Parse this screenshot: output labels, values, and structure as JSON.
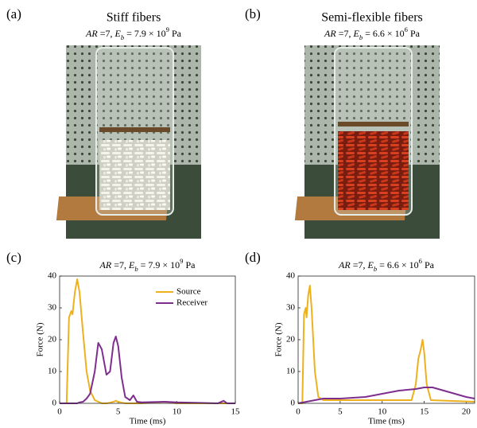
{
  "photos": [
    {
      "label": "(a)",
      "title": "Stiff fibers",
      "subtitle": [
        "AR",
        " =7, ",
        "E",
        "b",
        " = 7.9 × 10",
        "9",
        " Pa"
      ]
    },
    {
      "label": "(b)",
      "title": "Semi-flexible fibers",
      "subtitle": [
        "AR",
        " =7, ",
        "E",
        "b",
        " = 6.6 × 10",
        "6",
        " Pa"
      ]
    }
  ],
  "chart_data": [
    {
      "type": "line",
      "panel_label": "(c)",
      "subtitle": [
        "AR",
        " =7, ",
        "E",
        "b",
        " = 7.9 × 10",
        "9",
        " Pa"
      ],
      "xlabel": "Time (ms)",
      "ylabel": "Force (N)",
      "xlim": [
        0,
        15
      ],
      "xticks": [
        0,
        5,
        10,
        15
      ],
      "ylim": [
        0,
        40
      ],
      "yticks": [
        0,
        10,
        20,
        30,
        40
      ],
      "legend": "upper right",
      "series": [
        {
          "name": "Source",
          "color": "#edb120",
          "x": [
            0,
            0.6,
            0.8,
            1.0,
            1.1,
            1.3,
            1.5,
            1.7,
            2.0,
            2.3,
            2.6,
            3.0,
            3.3,
            3.6,
            4.0,
            4.3,
            4.6,
            4.8,
            5.0,
            5.3,
            5.6,
            6.0,
            6.3,
            6.6,
            7.0,
            9.0,
            10.0,
            13.5,
            14.0,
            14.3,
            15.0
          ],
          "values": [
            0,
            0,
            27,
            29,
            28,
            35,
            39,
            35,
            22,
            10,
            4,
            1,
            0.5,
            0,
            0,
            0.2,
            0.5,
            0.8,
            0.5,
            0.2,
            0,
            0,
            0,
            0,
            0,
            0.5,
            0,
            0,
            0,
            0,
            0
          ]
        },
        {
          "name": "Receiver",
          "color": "#7e2f8e",
          "x": [
            0,
            0.6,
            0.8,
            1.0,
            1.1,
            1.3,
            1.5,
            1.7,
            2.0,
            2.3,
            2.6,
            3.0,
            3.3,
            3.6,
            4.0,
            4.3,
            4.6,
            4.8,
            5.0,
            5.3,
            5.6,
            6.0,
            6.3,
            6.6,
            7.0,
            9.0,
            10.0,
            13.5,
            14.0,
            14.3,
            15.0
          ],
          "values": [
            0,
            0,
            0,
            0,
            0,
            0,
            0,
            0.3,
            0.5,
            1.5,
            3,
            10,
            19,
            17,
            9,
            10,
            19,
            21,
            18,
            8,
            2,
            1,
            2.5,
            0.5,
            0.3,
            0.5,
            0.3,
            0,
            0.8,
            0,
            0
          ]
        }
      ]
    },
    {
      "type": "line",
      "panel_label": "(d)",
      "subtitle": [
        "AR",
        " =7, ",
        "E",
        "b",
        " = 6.6 × 10",
        "6",
        " Pa"
      ],
      "xlabel": "Time (ms)",
      "ylabel": "Force (N)",
      "xlim": [
        0,
        21
      ],
      "xticks": [
        0,
        5,
        10,
        15,
        20
      ],
      "ylim": [
        0,
        40
      ],
      "yticks": [
        0,
        10,
        20,
        30,
        40
      ],
      "series": [
        {
          "name": "Source",
          "color": "#edb120",
          "x": [
            0,
            0.5,
            0.7,
            0.9,
            1.0,
            1.2,
            1.4,
            1.6,
            2.0,
            2.4,
            3.0,
            5.0,
            13.5,
            14.0,
            14.3,
            14.6,
            14.8,
            15.0,
            15.3,
            15.8,
            21.0
          ],
          "values": [
            0,
            0,
            28,
            30,
            27,
            34,
            37,
            30,
            10,
            2,
            1,
            1,
            1,
            6,
            14,
            17,
            20,
            16,
            6,
            1,
            0.5
          ]
        },
        {
          "name": "Receiver",
          "color": "#7e2f8e",
          "x": [
            0,
            1,
            2,
            3,
            5,
            8,
            10,
            12,
            14,
            15,
            16,
            18,
            20,
            21
          ],
          "values": [
            0,
            0.5,
            1,
            1.5,
            1.5,
            2,
            3,
            4,
            4.5,
            5,
            5,
            3.5,
            2,
            1.5
          ]
        }
      ]
    }
  ]
}
